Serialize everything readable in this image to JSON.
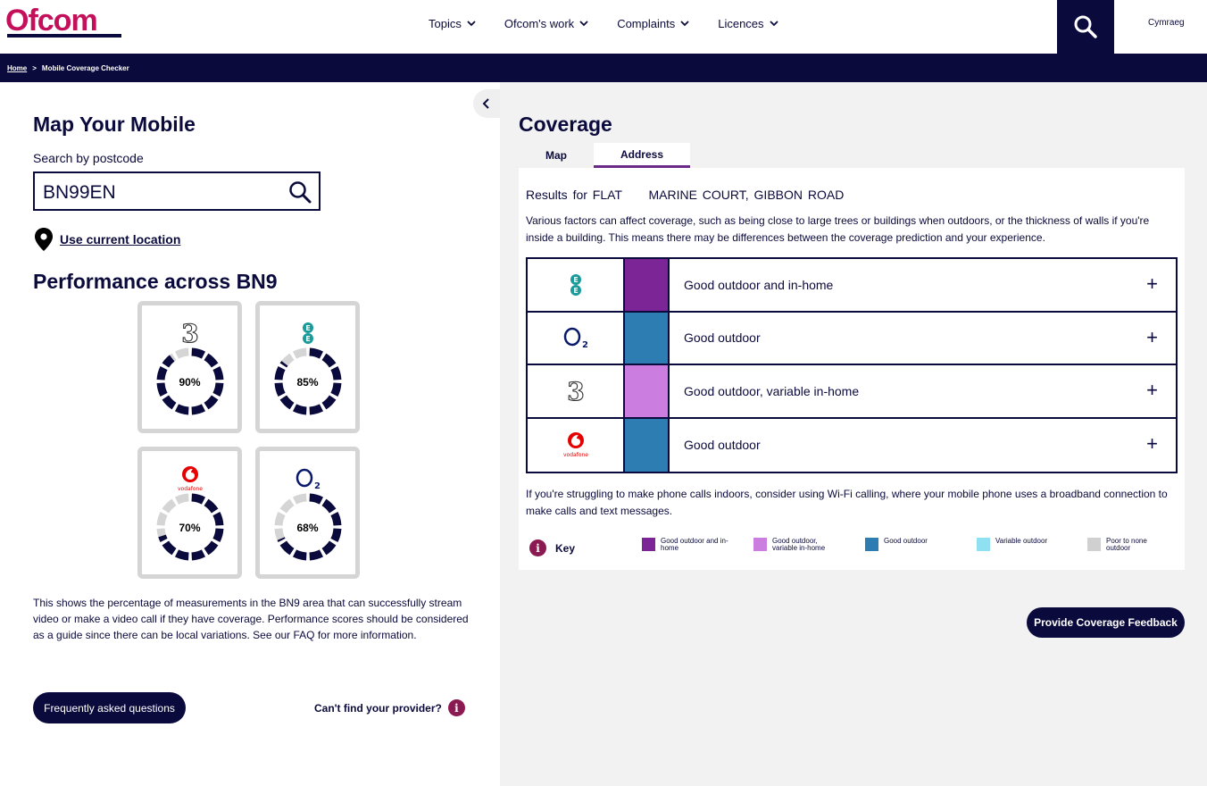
{
  "header": {
    "logo": "Ofcom",
    "nav": [
      "Topics",
      "Ofcom's work",
      "Complaints",
      "Licences"
    ],
    "language": "Cymraeg"
  },
  "breadcrumb": {
    "home": "Home",
    "separator": ">",
    "current": "Mobile Coverage Checker"
  },
  "left": {
    "title": "Map Your Mobile",
    "search_label": "Search by postcode",
    "search_value": "BN99EN",
    "use_location": "Use current location",
    "performance_title": "Performance across BN9",
    "providers": [
      {
        "name": "Three",
        "percent": "90%",
        "value": 0.9
      },
      {
        "name": "EE",
        "percent": "85%",
        "value": 0.85
      },
      {
        "name": "Vodafone",
        "percent": "70%",
        "value": 0.7
      },
      {
        "name": "O2",
        "percent": "68%",
        "value": 0.68
      }
    ],
    "description": "This shows the percentage of measurements in the BN9 area that can successfully stream video or make a video call if they have coverage. Performance scores should be considered as a guide since there can be local variations. See our FAQ for more information.",
    "faq_button": "Frequently asked questions",
    "cant_find": "Can't find your provider?"
  },
  "right": {
    "title": "Coverage",
    "tabs": [
      "Map",
      "Address"
    ],
    "results_prefix": "Results for FLAT",
    "results_address": "MARINE COURT, GIBBON ROAD",
    "note": "Various factors can affect coverage, such as being close to large trees or buildings when outdoors, or the thickness of walls if you're inside a building. This means there may be differences between the coverage prediction and your experience.",
    "coverage_rows": [
      {
        "provider": "EE",
        "status": "Good outdoor and in-home",
        "color": "#7b2596"
      },
      {
        "provider": "O2",
        "status": "Good outdoor",
        "color": "#2d7db3"
      },
      {
        "provider": "Three",
        "status": "Good outdoor, variable in-home",
        "color": "#cb7ee0"
      },
      {
        "provider": "Vodafone",
        "status": "Good outdoor",
        "color": "#2d7db3"
      }
    ],
    "wifi_note": "If you're struggling to make phone calls indoors, consider using Wi-Fi calling, where your mobile phone uses a broadband connection to make calls and text messages.",
    "key_title": "Key",
    "key_items": [
      {
        "label": "Good outdoor and in-home",
        "color": "#7b2596"
      },
      {
        "label": "Good outdoor, variable in-home",
        "color": "#cb7ee0"
      },
      {
        "label": "Good outdoor",
        "color": "#2d7db3"
      },
      {
        "label": "Variable outdoor",
        "color": "#8fe0f0"
      },
      {
        "label": "Poor to none outdoor",
        "color": "#d0d0d0"
      }
    ],
    "feedback_button": "Provide Coverage Feedback"
  },
  "colors": {
    "navy": "#0a0a3c",
    "ofcom_pink": "#c4105a",
    "info": "#8b1a52"
  }
}
